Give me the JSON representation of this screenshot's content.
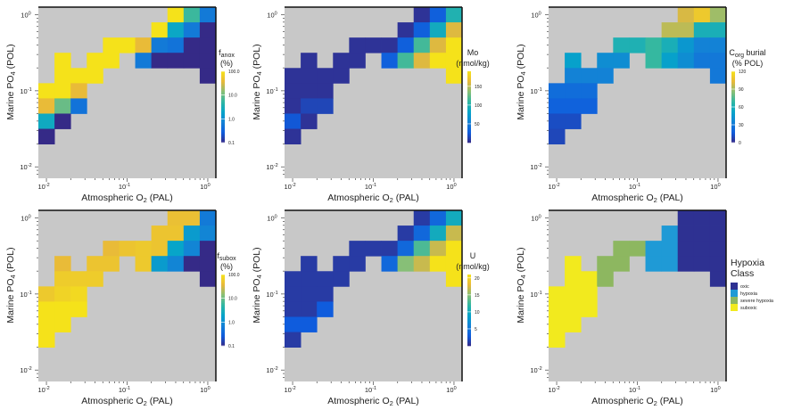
{
  "chart_data": {
    "type": "heatmap",
    "shared": {
      "xlabel": [
        "Atmospheric O",
        "2",
        " (PAL)"
      ],
      "ylabel": [
        "Marine PO",
        "4",
        " (POL)"
      ],
      "tick_base": "10",
      "x_tick_exponents": [
        "-2",
        "-1",
        "0"
      ],
      "y_tick_exponents": [
        "0",
        "-1",
        "-2"
      ],
      "x_log10_centers": [
        -2.0,
        -1.8,
        -1.6,
        -1.4,
        -1.2,
        -1.0,
        -0.8,
        -0.6,
        -0.4,
        -0.2,
        0.0
      ],
      "y_log10_centers": [
        0.0,
        -0.2,
        -0.4,
        -0.6,
        -0.8,
        -1.0,
        -1.2,
        -1.4,
        -1.6
      ],
      "xlim_log10": [
        -2.1,
        0.1
      ],
      "ylim_log10": [
        -2.15,
        0.1
      ],
      "no_data_color": "#c8c8c8",
      "colormap": [
        "#352a87",
        "#0f5cdd",
        "#1481d6",
        "#06a4ca",
        "#2eb7a4",
        "#87bf77",
        "#e8b83a",
        "#f5e21a"
      ]
    },
    "panels": [
      {
        "id": "f-anox",
        "cbar_label": {
          "main": "f",
          "sub": "anox",
          "line2": "(%)"
        },
        "scale": "log",
        "range": [
          0.1,
          100
        ],
        "cbar_ticks": [
          {
            "v": 100,
            "label": "100.0"
          },
          {
            "v": 10,
            "label": "10.0"
          },
          {
            "v": 1,
            "label": "1.0"
          },
          {
            "v": 0.1,
            "label": "0.1"
          }
        ],
        "values": [
          [
            null,
            null,
            null,
            null,
            null,
            null,
            null,
            null,
            100,
            6,
            0.6
          ],
          [
            null,
            null,
            null,
            null,
            null,
            null,
            null,
            100,
            2.2,
            0.6,
            0.1
          ],
          [
            null,
            null,
            null,
            null,
            100,
            100,
            40,
            0.6,
            0.5,
            0.1,
            0.1
          ],
          [
            null,
            100,
            null,
            100,
            100,
            null,
            0.6,
            0.1,
            0.1,
            0.1,
            0.1
          ],
          [
            null,
            100,
            100,
            100,
            null,
            null,
            null,
            null,
            null,
            null,
            0.1
          ],
          [
            100,
            100,
            40,
            null,
            null,
            null,
            null,
            null,
            null,
            null,
            null
          ],
          [
            40,
            10,
            0.5,
            null,
            null,
            null,
            null,
            null,
            null,
            null,
            null
          ],
          [
            2.5,
            0.1,
            null,
            null,
            null,
            null,
            null,
            null,
            null,
            null,
            null
          ],
          [
            0.1,
            null,
            null,
            null,
            null,
            null,
            null,
            null,
            null,
            null,
            null
          ]
        ]
      },
      {
        "id": "mo",
        "cbar_label": {
          "main": "Mo",
          "sub": "",
          "line2": "(nmol/kg)"
        },
        "scale": "linear",
        "range": [
          0,
          190
        ],
        "cbar_ticks": [
          {
            "v": 150,
            "label": "150"
          },
          {
            "v": 100,
            "label": "100"
          },
          {
            "v": 50,
            "label": "50"
          }
        ],
        "values": [
          [
            null,
            null,
            null,
            null,
            null,
            null,
            null,
            null,
            5,
            30,
            100
          ],
          [
            null,
            null,
            null,
            null,
            null,
            null,
            null,
            5,
            30,
            90,
            160
          ],
          [
            null,
            null,
            null,
            null,
            5,
            5,
            5,
            30,
            115,
            160,
            190
          ],
          [
            null,
            5,
            null,
            5,
            5,
            null,
            30,
            115,
            160,
            190,
            190
          ],
          [
            5,
            5,
            5,
            5,
            null,
            null,
            null,
            null,
            null,
            null,
            190
          ],
          [
            5,
            5,
            5,
            null,
            null,
            null,
            null,
            null,
            null,
            null,
            null
          ],
          [
            5,
            15,
            15,
            null,
            null,
            null,
            null,
            null,
            null,
            null,
            null
          ],
          [
            25,
            5,
            null,
            null,
            null,
            null,
            null,
            null,
            null,
            null,
            null
          ],
          [
            5,
            null,
            null,
            null,
            null,
            null,
            null,
            null,
            null,
            null,
            null
          ]
        ]
      },
      {
        "id": "corg-burial",
        "cbar_label": {
          "main": "C",
          "sub": "org",
          "tail": " burial",
          "line2": "(% POL)"
        },
        "scale": "linear",
        "range": [
          0,
          120
        ],
        "cbar_ticks": [
          {
            "v": 120,
            "label": "120"
          },
          {
            "v": 90,
            "label": "90"
          },
          {
            "v": 60,
            "label": "60"
          },
          {
            "v": 30,
            "label": "30"
          },
          {
            "v": 0,
            "label": "0"
          }
        ],
        "values": [
          [
            null,
            null,
            null,
            null,
            null,
            null,
            null,
            null,
            100,
            110,
            90
          ],
          [
            null,
            null,
            null,
            null,
            null,
            null,
            null,
            95,
            95,
            60,
            60
          ],
          [
            null,
            null,
            null,
            null,
            62,
            62,
            70,
            60,
            45,
            35,
            35
          ],
          [
            null,
            50,
            null,
            40,
            40,
            null,
            70,
            50,
            40,
            30,
            30
          ],
          [
            null,
            35,
            35,
            35,
            null,
            null,
            null,
            null,
            null,
            null,
            30
          ],
          [
            25,
            25,
            25,
            null,
            null,
            null,
            null,
            null,
            null,
            null,
            null
          ],
          [
            20,
            20,
            20,
            null,
            null,
            null,
            null,
            null,
            null,
            null,
            null
          ],
          [
            12,
            12,
            null,
            null,
            null,
            null,
            null,
            null,
            null,
            null,
            null
          ],
          [
            10,
            null,
            null,
            null,
            null,
            null,
            null,
            null,
            null,
            null,
            null
          ]
        ]
      },
      {
        "id": "f-subox",
        "cbar_label": {
          "main": "f",
          "sub": "subox",
          "line2": "(%)"
        },
        "scale": "log",
        "range": [
          0.1,
          100
        ],
        "cbar_ticks": [
          {
            "v": 100,
            "label": "100.0"
          },
          {
            "v": 10,
            "label": "10.0"
          },
          {
            "v": 1,
            "label": "1.0"
          },
          {
            "v": 0.1,
            "label": "0.1"
          }
        ],
        "values": [
          [
            null,
            null,
            null,
            null,
            null,
            null,
            null,
            null,
            45,
            45,
            0.6
          ],
          [
            null,
            null,
            null,
            null,
            null,
            null,
            null,
            50,
            50,
            1.5,
            0.8
          ],
          [
            null,
            null,
            null,
            null,
            40,
            50,
            55,
            50,
            2,
            0.8,
            0.1
          ],
          [
            null,
            40,
            null,
            50,
            50,
            null,
            55,
            1.5,
            0.8,
            0.1,
            0.1
          ],
          [
            null,
            60,
            60,
            60,
            null,
            null,
            null,
            null,
            null,
            null,
            0.1
          ],
          [
            55,
            70,
            80,
            null,
            null,
            null,
            null,
            null,
            null,
            null,
            null
          ],
          [
            100,
            100,
            100,
            null,
            null,
            null,
            null,
            null,
            null,
            null,
            null
          ],
          [
            100,
            100,
            null,
            null,
            null,
            null,
            null,
            null,
            null,
            null,
            null
          ],
          [
            100,
            null,
            null,
            null,
            null,
            null,
            null,
            null,
            null,
            null,
            null
          ]
        ]
      },
      {
        "id": "u",
        "cbar_label": {
          "main": "U",
          "sub": "",
          "line2": "(nmol/kg)"
        },
        "scale": "linear",
        "range": [
          0,
          21
        ],
        "cbar_ticks": [
          {
            "v": 20,
            "label": "20"
          },
          {
            "v": 15,
            "label": "15"
          },
          {
            "v": 10,
            "label": "10"
          },
          {
            "v": 5,
            "label": "5"
          }
        ],
        "values": [
          [
            null,
            null,
            null,
            null,
            null,
            null,
            null,
            null,
            1,
            4,
            10
          ],
          [
            null,
            null,
            null,
            null,
            null,
            null,
            null,
            1,
            4,
            10,
            17
          ],
          [
            null,
            null,
            null,
            null,
            1,
            1,
            1,
            4,
            13,
            17,
            21
          ],
          [
            null,
            1,
            null,
            1,
            1,
            null,
            4,
            15,
            17,
            21,
            21
          ],
          [
            1,
            1,
            1,
            1,
            null,
            null,
            null,
            null,
            null,
            null,
            21
          ],
          [
            1,
            1,
            1,
            null,
            null,
            null,
            null,
            null,
            null,
            null,
            null
          ],
          [
            1,
            1,
            3,
            null,
            null,
            null,
            null,
            null,
            null,
            null,
            null
          ],
          [
            3,
            3,
            null,
            null,
            null,
            null,
            null,
            null,
            null,
            null,
            null
          ],
          [
            1,
            null,
            null,
            null,
            null,
            null,
            null,
            null,
            null,
            null,
            null
          ]
        ]
      },
      {
        "id": "hypoxia-class",
        "scale": "categorical",
        "legend_title": [
          "Hypoxia",
          "Class"
        ],
        "classes": [
          {
            "label": "oxic",
            "color": "#2e3192"
          },
          {
            "label": "hypoxia",
            "color": "#1f9ad6"
          },
          {
            "label": "severe hypoxia",
            "color": "#8db760"
          },
          {
            "label": "suboxic",
            "color": "#f2ea1e"
          }
        ],
        "values": [
          [
            null,
            null,
            null,
            null,
            null,
            null,
            null,
            null,
            0,
            0,
            0
          ],
          [
            null,
            null,
            null,
            null,
            null,
            null,
            null,
            1,
            0,
            0,
            0
          ],
          [
            null,
            null,
            null,
            null,
            2,
            2,
            1,
            1,
            0,
            0,
            0
          ],
          [
            null,
            3,
            null,
            2,
            2,
            null,
            1,
            1,
            0,
            0,
            0
          ],
          [
            null,
            3,
            3,
            2,
            null,
            null,
            null,
            null,
            null,
            null,
            0
          ],
          [
            3,
            3,
            3,
            null,
            null,
            null,
            null,
            null,
            null,
            null,
            null
          ],
          [
            3,
            3,
            3,
            null,
            null,
            null,
            null,
            null,
            null,
            null,
            null
          ],
          [
            3,
            3,
            null,
            null,
            null,
            null,
            null,
            null,
            null,
            null,
            null
          ],
          [
            3,
            null,
            null,
            null,
            null,
            null,
            null,
            null,
            null,
            null,
            null
          ]
        ]
      }
    ]
  }
}
